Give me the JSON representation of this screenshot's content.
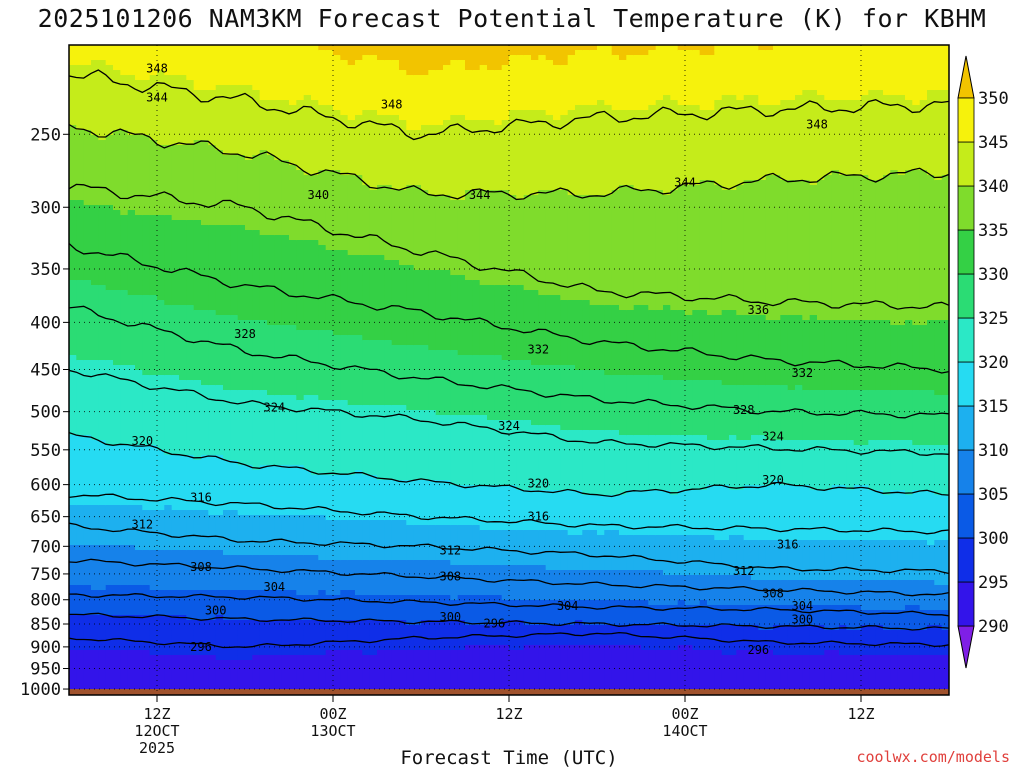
{
  "chart_data": {
    "type": "time-height contour (filled)",
    "title": "2025101206 NAM3KM Forecast Potential Temperature (K) for KBHM",
    "variable": "Potential Temperature (K)",
    "xlabel": "Forecast Time (UTC)",
    "ylabel": "",
    "x_range_hours": [
      0,
      60
    ],
    "y_range_hPa": [
      1015,
      200
    ],
    "y_ticks": [
      250,
      300,
      350,
      400,
      450,
      500,
      550,
      600,
      650,
      700,
      750,
      800,
      850,
      900,
      950,
      1000
    ],
    "x_ticks": [
      {
        "hour": 6,
        "line1": "12Z",
        "line2": "12OCT",
        "line3": "2025"
      },
      {
        "hour": 18,
        "line1": "00Z",
        "line2": "13OCT",
        "line3": ""
      },
      {
        "hour": 30,
        "line1": "12Z",
        "line2": "",
        "line3": ""
      },
      {
        "hour": 42,
        "line1": "00Z",
        "line2": "14OCT",
        "line3": ""
      },
      {
        "hour": 54,
        "line1": "12Z",
        "line2": "",
        "line3": ""
      }
    ],
    "colorbar": {
      "levels": [
        290,
        295,
        300,
        305,
        310,
        315,
        320,
        325,
        330,
        335,
        340,
        345,
        350
      ],
      "colors": [
        "#7f1fe6",
        "#3314ea",
        "#0f2ee8",
        "#0a5ae6",
        "#1682ea",
        "#1db0ef",
        "#26dbf2",
        "#2be8c6",
        "#2bdc74",
        "#34d045",
        "#7fdc2c",
        "#c5ec1a",
        "#f6f20c",
        "#f2c400"
      ]
    },
    "contour_interval_K": 4,
    "isentropes": [
      {
        "level": 344,
        "p_by_hour": [
          [
            0,
            215
          ],
          [
            12,
            230
          ],
          [
            24,
            250
          ],
          [
            36,
            240
          ],
          [
            48,
            235
          ],
          [
            60,
            232
          ]
        ]
      },
      {
        "level": 340,
        "p_by_hour": [
          [
            0,
            245
          ],
          [
            12,
            262
          ],
          [
            24,
            290
          ],
          [
            36,
            290
          ],
          [
            48,
            280
          ],
          [
            60,
            275
          ]
        ]
      },
      {
        "level": 336,
        "p_by_hour": [
          [
            0,
            285
          ],
          [
            12,
            300
          ],
          [
            24,
            335
          ],
          [
            36,
            370
          ],
          [
            48,
            380
          ],
          [
            60,
            385
          ]
        ]
      },
      {
        "level": 332,
        "p_by_hour": [
          [
            0,
            330
          ],
          [
            12,
            365
          ],
          [
            24,
            390
          ],
          [
            36,
            420
          ],
          [
            48,
            440
          ],
          [
            60,
            450
          ]
        ]
      },
      {
        "level": 328,
        "p_by_hour": [
          [
            0,
            385
          ],
          [
            12,
            430
          ],
          [
            24,
            460
          ],
          [
            36,
            485
          ],
          [
            48,
            500
          ],
          [
            60,
            505
          ]
        ]
      },
      {
        "level": 324,
        "p_by_hour": [
          [
            0,
            450
          ],
          [
            12,
            490
          ],
          [
            24,
            510
          ],
          [
            36,
            540
          ],
          [
            48,
            548
          ],
          [
            60,
            555
          ]
        ]
      },
      {
        "level": 320,
        "p_by_hour": [
          [
            0,
            530
          ],
          [
            12,
            570
          ],
          [
            24,
            595
          ],
          [
            36,
            615
          ],
          [
            48,
            600
          ],
          [
            60,
            615
          ]
        ]
      },
      {
        "level": 316,
        "p_by_hour": [
          [
            0,
            615
          ],
          [
            12,
            630
          ],
          [
            24,
            650
          ],
          [
            36,
            665
          ],
          [
            48,
            670
          ],
          [
            60,
            675
          ]
        ]
      },
      {
        "level": 312,
        "p_by_hour": [
          [
            0,
            665
          ],
          [
            12,
            690
          ],
          [
            24,
            700
          ],
          [
            36,
            715
          ],
          [
            48,
            740
          ],
          [
            60,
            745
          ]
        ]
      },
      {
        "level": 308,
        "p_by_hour": [
          [
            0,
            725
          ],
          [
            12,
            740
          ],
          [
            24,
            755
          ],
          [
            36,
            770
          ],
          [
            48,
            780
          ],
          [
            60,
            790
          ]
        ]
      },
      {
        "level": 304,
        "p_by_hour": [
          [
            0,
            790
          ],
          [
            12,
            795
          ],
          [
            24,
            805
          ],
          [
            36,
            815
          ],
          [
            48,
            820
          ],
          [
            60,
            830
          ]
        ]
      },
      {
        "level": 300,
        "p_by_hour": [
          [
            0,
            830
          ],
          [
            12,
            840
          ],
          [
            24,
            845
          ],
          [
            36,
            850
          ],
          [
            48,
            855
          ],
          [
            60,
            860
          ]
        ]
      },
      {
        "level": 296,
        "p_by_hour": [
          [
            0,
            880
          ],
          [
            12,
            900
          ],
          [
            24,
            880
          ],
          [
            36,
            870
          ],
          [
            48,
            890
          ],
          [
            60,
            895
          ]
        ]
      }
    ],
    "contour_labels": [
      {
        "text": "348",
        "hour": 6,
        "p": 212
      },
      {
        "text": "344",
        "hour": 6,
        "p": 228
      },
      {
        "text": "348",
        "hour": 22,
        "p": 232
      },
      {
        "text": "348",
        "hour": 51,
        "p": 244
      },
      {
        "text": "340",
        "hour": 17,
        "p": 291
      },
      {
        "text": "344",
        "hour": 28,
        "p": 291
      },
      {
        "text": "344",
        "hour": 42,
        "p": 282
      },
      {
        "text": "336",
        "hour": 47,
        "p": 388
      },
      {
        "text": "328",
        "hour": 12,
        "p": 412
      },
      {
        "text": "332",
        "hour": 32,
        "p": 428
      },
      {
        "text": "332",
        "hour": 50,
        "p": 454
      },
      {
        "text": "324",
        "hour": 14,
        "p": 495
      },
      {
        "text": "328",
        "hour": 46,
        "p": 498
      },
      {
        "text": "324",
        "hour": 30,
        "p": 518
      },
      {
        "text": "324",
        "hour": 48,
        "p": 532
      },
      {
        "text": "320",
        "hour": 5,
        "p": 538
      },
      {
        "text": "320",
        "hour": 32,
        "p": 598
      },
      {
        "text": "320",
        "hour": 48,
        "p": 593
      },
      {
        "text": "316",
        "hour": 9,
        "p": 620
      },
      {
        "text": "316",
        "hour": 32,
        "p": 650
      },
      {
        "text": "316",
        "hour": 49,
        "p": 697
      },
      {
        "text": "312",
        "hour": 5,
        "p": 663
      },
      {
        "text": "312",
        "hour": 26,
        "p": 707
      },
      {
        "text": "308",
        "hour": 9,
        "p": 737
      },
      {
        "text": "308",
        "hour": 26,
        "p": 755
      },
      {
        "text": "312",
        "hour": 46,
        "p": 745
      },
      {
        "text": "304",
        "hour": 14,
        "p": 775
      },
      {
        "text": "308",
        "hour": 48,
        "p": 788
      },
      {
        "text": "304",
        "hour": 34,
        "p": 813
      },
      {
        "text": "304",
        "hour": 50,
        "p": 813
      },
      {
        "text": "300",
        "hour": 10,
        "p": 822
      },
      {
        "text": "300",
        "hour": 26,
        "p": 835
      },
      {
        "text": "300",
        "hour": 50,
        "p": 840
      },
      {
        "text": "296",
        "hour": 9,
        "p": 900
      },
      {
        "text": "296",
        "hour": 29,
        "p": 849
      },
      {
        "text": "296",
        "hour": 47,
        "p": 907
      }
    ],
    "ground_below_hPa": 1000
  },
  "footer": "coolwx.com/models"
}
